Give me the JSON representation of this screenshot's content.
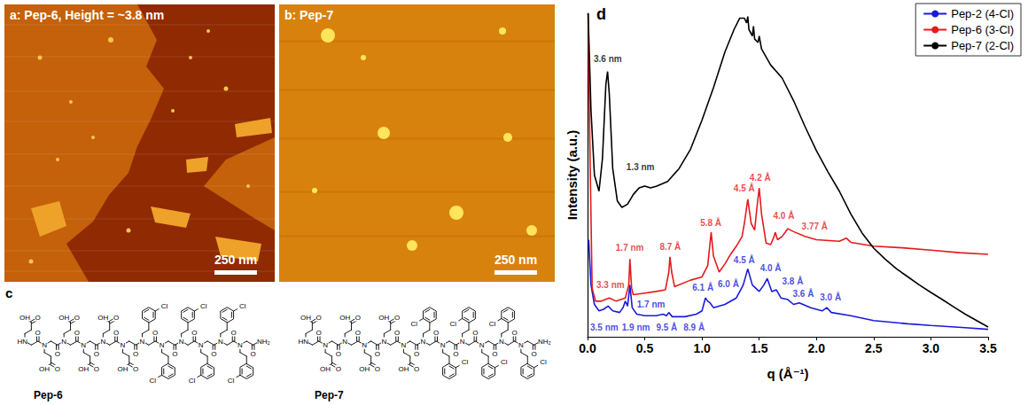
{
  "panel_a": {
    "label": "a: Pep-6, Height = ~3.8 nm",
    "scale_bar": "250 nm"
  },
  "panel_b": {
    "label": "b: Pep-7",
    "scale_bar": "250 nm"
  },
  "panel_c": {
    "letter": "c",
    "acid_residues": 6,
    "aryl_residues": 6,
    "atoms": {
      "n_terminus": "HN",
      "c_terminus": "NH₂",
      "amide": "N",
      "carbonyl": "O",
      "hydroxyl": "OH",
      "chlorine": "Cl"
    },
    "molecules": [
      {
        "name": "Pep-6",
        "chlorine_position": 3
      },
      {
        "name": "Pep-7",
        "chlorine_position": 2
      }
    ]
  },
  "chart_data": {
    "type": "line",
    "title": "d",
    "x_label": "q (Å⁻¹)",
    "y_label": "Intensity (a.u.)",
    "xlim": [
      0,
      3.5
    ],
    "xticks": [
      {
        "value": 0,
        "label": "0.0"
      },
      0.5,
      {
        "value": 1,
        "label": "1.0"
      },
      1.5,
      {
        "value": 2,
        "label": "2.0"
      },
      2.5,
      {
        "value": 3,
        "label": "3.0"
      },
      3.5
    ],
    "ylim": [
      0,
      100
    ],
    "tick_labels": "x",
    "grid": false,
    "legend": "top-right",
    "series": [
      {
        "name": "Pep-2 (4-Cl)",
        "color": "#1a1adb",
        "x": [
          0.01,
          0.03,
          0.06,
          0.1,
          0.14,
          0.18,
          0.22,
          0.28,
          0.31,
          0.33,
          0.35,
          0.37,
          0.39,
          0.43,
          0.5,
          0.6,
          0.66,
          0.69,
          0.71,
          0.74,
          0.85,
          0.95,
          1.0,
          1.03,
          1.05,
          1.07,
          1.1,
          1.2,
          1.3,
          1.36,
          1.4,
          1.44,
          1.5,
          1.54,
          1.57,
          1.61,
          1.65,
          1.69,
          1.75,
          1.8,
          1.85,
          1.95,
          2.05,
          2.09,
          2.13,
          2.3,
          2.5,
          2.8,
          3.0,
          3.3,
          3.5
        ],
        "values": [
          30,
          16,
          10,
          8,
          8.5,
          9.5,
          8,
          7.5,
          9,
          11,
          9.5,
          16,
          9,
          7,
          6.5,
          6.5,
          7,
          6.5,
          7.5,
          6.2,
          6.2,
          7,
          8,
          12,
          11,
          10.5,
          9,
          10,
          12,
          16,
          21,
          16,
          14,
          16,
          18,
          14,
          14.5,
          12,
          11.5,
          10,
          10.5,
          9,
          8,
          9,
          7.5,
          6.5,
          5,
          4,
          3.5,
          2.8,
          2.3
        ],
        "annotations": [
          {
            "text": "3.5 nm",
            "x": 0.146,
            "y": 3.0
          },
          {
            "text": "1.9 nm",
            "x": 0.423,
            "y": 3.0
          },
          {
            "text": "1.7 nm",
            "x": 0.554,
            "y": 10.1
          },
          {
            "text": "9.5 Å",
            "x": 0.692,
            "y": 3.0
          },
          {
            "text": "8.9 Å",
            "x": 0.931,
            "y": 3.0
          },
          {
            "text": "6.1 Å",
            "x": 1.008,
            "y": 15.1
          },
          {
            "text": "6.0 Å",
            "x": 1.231,
            "y": 16.4
          },
          {
            "text": "4.5 Å",
            "x": 1.369,
            "y": 23.8
          },
          {
            "text": "4.0 Å",
            "x": 1.6,
            "y": 21.1
          },
          {
            "text": "3.8 Å",
            "x": 1.792,
            "y": 17.0
          },
          {
            "text": "3.6 Å",
            "x": 1.885,
            "y": 13.2
          },
          {
            "text": "3.0 Å",
            "x": 2.123,
            "y": 12.3
          }
        ]
      },
      {
        "name": "Pep-6 (3-Cl)",
        "color": "#e41a1c",
        "x": [
          0.005,
          0.02,
          0.04,
          0.07,
          0.12,
          0.19,
          0.25,
          0.33,
          0.36,
          0.37,
          0.385,
          0.4,
          0.5,
          0.6,
          0.68,
          0.71,
          0.72,
          0.735,
          0.76,
          0.9,
          1.0,
          1.05,
          1.08,
          1.1,
          1.15,
          1.2,
          1.25,
          1.3,
          1.35,
          1.37,
          1.4,
          1.43,
          1.46,
          1.48,
          1.5,
          1.52,
          1.56,
          1.6,
          1.63,
          1.64,
          1.66,
          1.7,
          1.75,
          1.8,
          1.9,
          2.0,
          2.2,
          2.26,
          2.3,
          2.5,
          2.75,
          3.0,
          3.25,
          3.5
        ],
        "values": [
          100,
          60,
          15,
          11,
          11,
          12,
          11,
          12,
          16,
          24,
          15,
          13,
          13.5,
          14,
          14.5,
          20,
          24.7,
          20,
          15.5,
          17.5,
          18.5,
          22,
          32.3,
          25,
          20,
          22.5,
          25.5,
          28,
          31,
          35,
          42.5,
          35,
          33,
          40,
          46,
          38,
          29,
          28.5,
          31,
          32.3,
          30,
          31,
          33.4,
          32.5,
          31,
          30,
          29.5,
          30.5,
          29.2,
          28,
          27.5,
          26.8,
          26,
          25.5
        ],
        "annotations": [
          {
            "text": "3.3 nm",
            "x": 0.2,
            "y": 15.9
          },
          {
            "text": "1.7 nm",
            "x": 0.369,
            "y": 27.4
          },
          {
            "text": "8.7 Å",
            "x": 0.723,
            "y": 27.7
          },
          {
            "text": "5.8 Å",
            "x": 1.077,
            "y": 35.1
          },
          {
            "text": "4.5 Å",
            "x": 1.369,
            "y": 45.8
          },
          {
            "text": "4.2 Å",
            "x": 1.508,
            "y": 49.3
          },
          {
            "text": "4.0 Å",
            "x": 1.715,
            "y": 37.5
          },
          {
            "text": "3.77 Å",
            "x": 1.985,
            "y": 34.2
          }
        ]
      },
      {
        "name": "Pep-7 (2-Cl)",
        "color": "#000000",
        "x": [
          0.005,
          0.03,
          0.06,
          0.1,
          0.13,
          0.16,
          0.175,
          0.19,
          0.22,
          0.26,
          0.3,
          0.35,
          0.4,
          0.45,
          0.5,
          0.55,
          0.6,
          0.7,
          0.8,
          0.9,
          1.0,
          1.1,
          1.2,
          1.28,
          1.33,
          1.37,
          1.39,
          1.4,
          1.41,
          1.44,
          1.45,
          1.46,
          1.49,
          1.5,
          1.52,
          1.6,
          1.7,
          1.8,
          1.9,
          2.0,
          2.1,
          2.2,
          2.3,
          2.4,
          2.5,
          2.6,
          2.7,
          2.8,
          2.9,
          3.0,
          3.1,
          3.2,
          3.3,
          3.4,
          3.5
        ],
        "values": [
          100,
          70,
          50,
          45,
          55,
          78,
          82,
          75,
          52,
          42,
          40,
          41,
          44,
          46,
          46.6,
          46,
          46.5,
          48,
          52,
          58,
          67,
          77,
          88,
          95,
          98.5,
          98.5,
          97,
          99,
          95,
          93,
          96,
          92,
          91,
          93,
          89,
          84,
          80,
          73,
          65,
          57.5,
          51,
          45,
          38,
          32,
          27.4,
          24,
          21,
          18.5,
          16,
          13.7,
          11.5,
          9.2,
          7,
          5,
          3
        ],
        "annotations": [
          {
            "text": "3.6 nm",
            "x": 0.177,
            "y": 86.0
          },
          {
            "text": "1.3 nm",
            "x": 0.462,
            "y": 52.6
          }
        ]
      }
    ]
  }
}
